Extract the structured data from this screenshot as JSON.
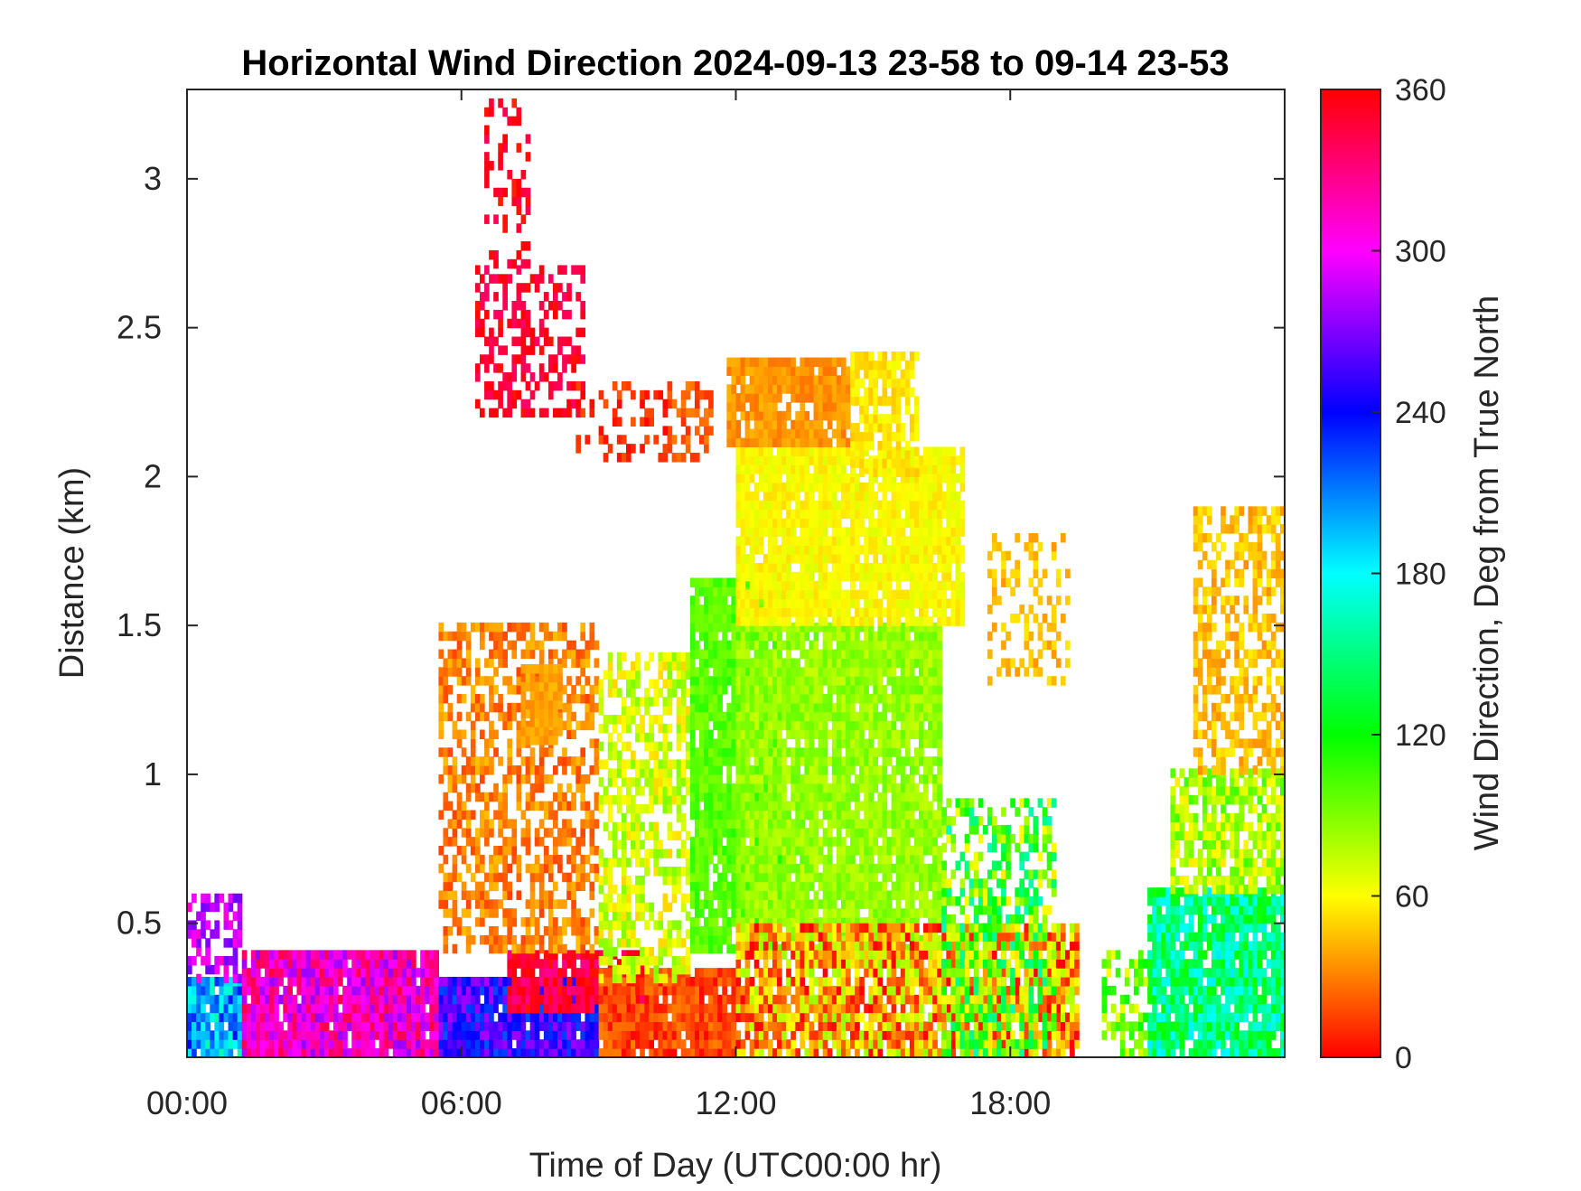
{
  "chart_data": {
    "type": "heatmap",
    "title": "Horizontal Wind Direction 2024-09-13 23-58 to 09-14 23-53",
    "xlabel": "Time of Day (UTC00:00 hr)",
    "ylabel": "Distance (km)",
    "xlim_hours": [
      0,
      24
    ],
    "ylim_km": [
      0.05,
      3.3
    ],
    "x_ticks": [
      {
        "hour": 0,
        "label": "00:00"
      },
      {
        "hour": 6,
        "label": "06:00"
      },
      {
        "hour": 12,
        "label": "12:00"
      },
      {
        "hour": 18,
        "label": "18:00"
      }
    ],
    "y_ticks": [
      {
        "km": 0.5,
        "label": "0.5"
      },
      {
        "km": 1,
        "label": "1"
      },
      {
        "km": 1.5,
        "label": "1.5"
      },
      {
        "km": 2,
        "label": "2"
      },
      {
        "km": 2.5,
        "label": "2.5"
      },
      {
        "km": 3,
        "label": "3"
      }
    ],
    "colorbar": {
      "label": "Wind Direction, Deg from True North",
      "range": [
        0,
        360
      ],
      "ticks": [
        {
          "value": 0,
          "label": "0"
        },
        {
          "value": 60,
          "label": "60"
        },
        {
          "value": 120,
          "label": "120"
        },
        {
          "value": 180,
          "label": "180"
        },
        {
          "value": 240,
          "label": "240"
        },
        {
          "value": 300,
          "label": "300"
        },
        {
          "value": 360,
          "label": "360"
        }
      ],
      "colormap": "hsv"
    },
    "regions": [
      {
        "t0": 0.0,
        "t1": 1.2,
        "z0": 0.05,
        "z1": 0.3,
        "dir": 200,
        "spread": 40,
        "density": 0.95
      },
      {
        "t0": 0.0,
        "t1": 1.2,
        "z0": 0.3,
        "z1": 0.6,
        "dir": 290,
        "spread": 25,
        "density": 0.6
      },
      {
        "t0": 1.2,
        "t1": 5.5,
        "z0": 0.05,
        "z1": 0.4,
        "dir": 310,
        "spread": 35,
        "density": 0.95
      },
      {
        "t0": 5.5,
        "t1": 9.0,
        "z0": 0.05,
        "z1": 0.3,
        "dir": 250,
        "spread": 30,
        "density": 0.95
      },
      {
        "t0": 7.0,
        "t1": 10.0,
        "z0": 0.2,
        "z1": 0.4,
        "dir": 345,
        "spread": 20,
        "density": 0.9
      },
      {
        "t0": 9.0,
        "t1": 12.0,
        "z0": 0.05,
        "z1": 0.35,
        "dir": 15,
        "spread": 15,
        "density": 0.95
      },
      {
        "t0": 5.5,
        "t1": 9.0,
        "z0": 0.4,
        "z1": 1.5,
        "dir": 30,
        "spread": 15,
        "density": 0.55
      },
      {
        "t0": 7.3,
        "t1": 8.2,
        "z0": 1.1,
        "z1": 1.35,
        "dir": 38,
        "spread": 6,
        "density": 0.9
      },
      {
        "t0": 9.0,
        "t1": 11.0,
        "z0": 0.3,
        "z1": 1.4,
        "dir": 70,
        "spread": 20,
        "density": 0.6
      },
      {
        "t0": 11.0,
        "t1": 13.0,
        "z0": 0.4,
        "z1": 1.65,
        "dir": 100,
        "spread": 12,
        "density": 0.9
      },
      {
        "t0": 12.0,
        "t1": 16.5,
        "z0": 0.4,
        "z1": 1.5,
        "dir": 85,
        "spread": 12,
        "density": 0.9
      },
      {
        "t0": 12.0,
        "t1": 17.0,
        "z0": 1.5,
        "z1": 2.1,
        "dir": 60,
        "spread": 8,
        "density": 0.92
      },
      {
        "t0": 11.8,
        "t1": 14.5,
        "z0": 2.1,
        "z1": 2.4,
        "dir": 35,
        "spread": 8,
        "density": 0.9
      },
      {
        "t0": 14.5,
        "t1": 16.0,
        "z0": 2.0,
        "z1": 2.4,
        "dir": 55,
        "spread": 8,
        "density": 0.75
      },
      {
        "t0": 10.5,
        "t1": 11.5,
        "z0": 2.05,
        "z1": 2.3,
        "dir": 20,
        "spread": 10,
        "density": 0.55
      },
      {
        "t0": 6.3,
        "t1": 8.7,
        "z0": 2.2,
        "z1": 2.7,
        "dir": 350,
        "spread": 15,
        "density": 0.45
      },
      {
        "t0": 6.5,
        "t1": 7.5,
        "z0": 2.7,
        "z1": 3.25,
        "dir": 355,
        "spread": 15,
        "density": 0.3
      },
      {
        "t0": 8.5,
        "t1": 10.5,
        "z0": 2.05,
        "z1": 2.3,
        "dir": 10,
        "spread": 10,
        "density": 0.3
      },
      {
        "t0": 12.0,
        "t1": 19.5,
        "z0": 0.05,
        "z1": 0.5,
        "dir": 40,
        "spread": 45,
        "density": 0.85
      },
      {
        "t0": 16.5,
        "t1": 19.0,
        "z0": 0.05,
        "z1": 0.9,
        "dir": 110,
        "spread": 55,
        "density": 0.55
      },
      {
        "t0": 17.5,
        "t1": 19.3,
        "z0": 1.3,
        "z1": 1.8,
        "dir": 45,
        "spread": 10,
        "density": 0.35
      },
      {
        "t0": 21.0,
        "t1": 24.0,
        "z0": 0.05,
        "z1": 0.6,
        "dir": 150,
        "spread": 35,
        "density": 0.9
      },
      {
        "t0": 21.5,
        "t1": 24.0,
        "z0": 0.6,
        "z1": 1.0,
        "dir": 80,
        "spread": 25,
        "density": 0.75
      },
      {
        "t0": 22.0,
        "t1": 24.0,
        "z0": 1.0,
        "z1": 1.9,
        "dir": 45,
        "spread": 12,
        "density": 0.55
      },
      {
        "t0": 20.0,
        "t1": 21.0,
        "z0": 0.05,
        "z1": 0.4,
        "dir": 90,
        "spread": 30,
        "density": 0.45
      }
    ]
  }
}
